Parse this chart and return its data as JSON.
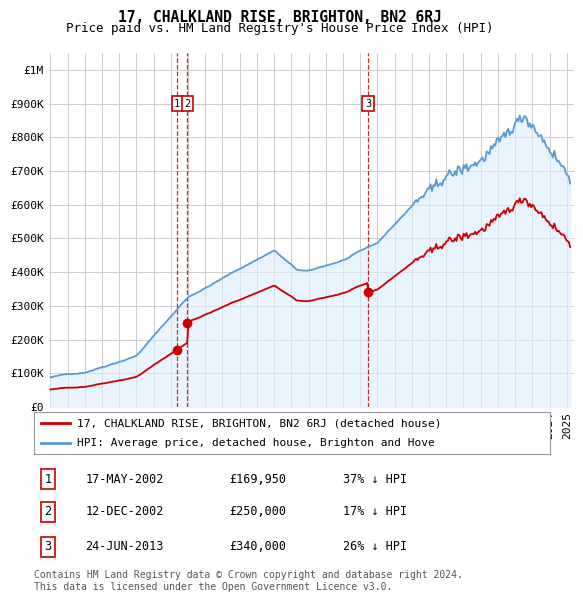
{
  "title": "17, CHALKLAND RISE, BRIGHTON, BN2 6RJ",
  "subtitle": "Price paid vs. HM Land Registry's House Price Index (HPI)",
  "ylim": [
    0,
    1050000
  ],
  "yticks": [
    0,
    100000,
    200000,
    300000,
    400000,
    500000,
    600000,
    700000,
    800000,
    900000,
    1000000
  ],
  "ytick_labels": [
    "£0",
    "£100K",
    "£200K",
    "£300K",
    "£400K",
    "£500K",
    "£600K",
    "£700K",
    "£800K",
    "£900K",
    "£1M"
  ],
  "hpi_color": "#5b9bd5",
  "hpi_fill_color": "#ddeeff",
  "price_color": "#cc0000",
  "vline_color": "#cc0000",
  "grid_color": "#cccccc",
  "background_color": "#ffffff",
  "transactions": [
    {
      "label": "1",
      "date": "17-MAY-2002",
      "price": 169950,
      "price_str": "£169,950",
      "pct": "37%",
      "dir": "↓"
    },
    {
      "label": "2",
      "date": "12-DEC-2002",
      "price": 250000,
      "price_str": "£250,000",
      "pct": "17%",
      "dir": "↓"
    },
    {
      "label": "3",
      "date": "24-JUN-2013",
      "price": 340000,
      "price_str": "£340,000",
      "pct": "26%",
      "dir": "↓"
    }
  ],
  "legend_label_red": "17, CHALKLAND RISE, BRIGHTON, BN2 6RJ (detached house)",
  "legend_label_blue": "HPI: Average price, detached house, Brighton and Hove",
  "footer": "Contains HM Land Registry data © Crown copyright and database right 2024.\nThis data is licensed under the Open Government Licence v3.0.",
  "title_fontsize": 10.5,
  "subtitle_fontsize": 9,
  "tick_fontsize": 8,
  "legend_fontsize": 8,
  "table_fontsize": 8.5,
  "footer_fontsize": 7
}
